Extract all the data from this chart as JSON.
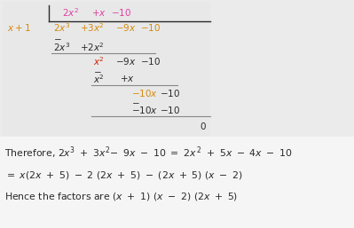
{
  "bg_color": "#ebebeb",
  "text_color_black": "#2a2a2a",
  "text_color_pink": "#e040a0",
  "text_color_orange": "#d4890a",
  "text_color_red": "#cc2200",
  "figsize": [
    3.99,
    2.57
  ],
  "dpi": 100,
  "division_bg": "#e8e8e8"
}
